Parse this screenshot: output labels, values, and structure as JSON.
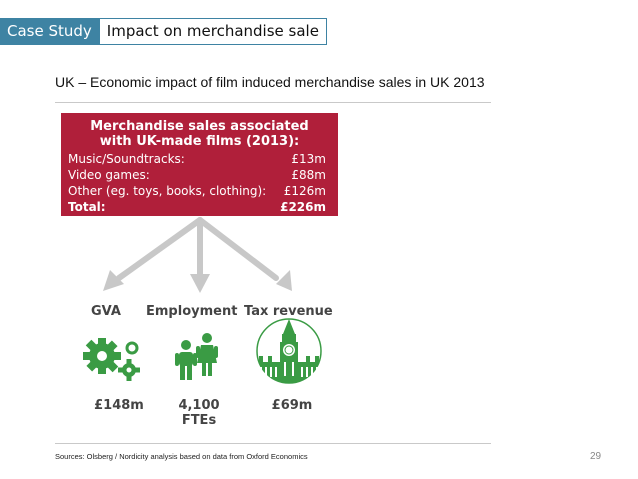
{
  "header": {
    "tag": "Case Study",
    "title": "Impact on merchandise sale"
  },
  "subtitle": "UK – Economic impact of film induced merchandise sales in UK 2013",
  "infobox": {
    "title_line1": "Merchandise sales associated",
    "title_line2": "with UK-made films (2013):",
    "rows": [
      {
        "label": "Music/Soundtracks:",
        "value": "£13m"
      },
      {
        "label": "Video games:",
        "value": "£88m"
      },
      {
        "label": "Other (eg. toys, books, clothing):",
        "value": "£126m"
      },
      {
        "label": "Total:",
        "value": "£226m"
      }
    ]
  },
  "impacts": [
    {
      "label": "GVA",
      "value": "£148m",
      "value_line2": "",
      "icon": "gears-icon"
    },
    {
      "label": "Employment",
      "value": "4,100",
      "value_line2": "FTEs",
      "icon": "people-icon"
    },
    {
      "label": "Tax revenue",
      "value": "£69m",
      "value_line2": "",
      "icon": "big-ben-icon"
    }
  ],
  "colors": {
    "accent_blue": "#3e83a3",
    "box_red": "#b01f3a",
    "icon_green": "#3a9b44",
    "arrow_grey": "#c8c8c8"
  },
  "footer": {
    "source": "Sources: Olsberg / Nordicity analysis based on data from Oxford Economics",
    "page": "29"
  }
}
